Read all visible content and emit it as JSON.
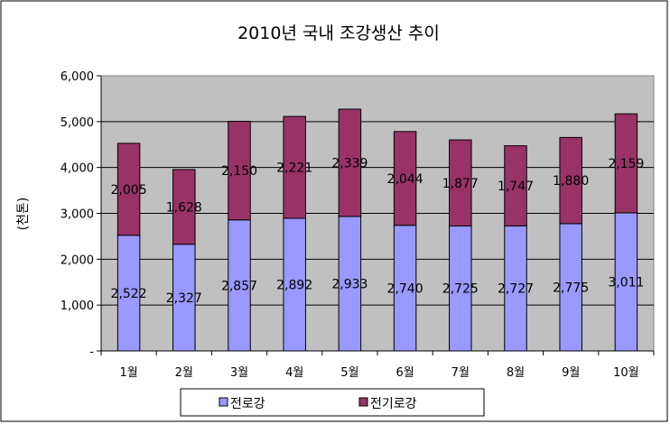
{
  "chart_data": {
    "type": "bar",
    "stacked": true,
    "title": "2010년 국내 조강생산 추이",
    "ylabel": "(천톤)",
    "xlabel": "",
    "categories": [
      "1월",
      "2월",
      "3월",
      "4월",
      "5월",
      "6월",
      "7월",
      "8월",
      "9월",
      "10월"
    ],
    "series": [
      {
        "name": "전로강",
        "color": "#9999ff",
        "values": [
          2522,
          2327,
          2857,
          2892,
          2933,
          2740,
          2725,
          2727,
          2775,
          3011
        ]
      },
      {
        "name": "전기로강",
        "color": "#993366",
        "values": [
          2005,
          1628,
          2150,
          2221,
          2339,
          2044,
          1877,
          1747,
          1880,
          2159
        ]
      }
    ],
    "data_labels": [
      [
        "2,522",
        "2,327",
        "2,857",
        "2,892",
        "2,933",
        "2,740",
        "2,725",
        "2,727",
        "2,775",
        "3,011"
      ],
      [
        "2,005",
        "1,628",
        "2,150",
        "2,221",
        "2,339",
        "2,044",
        "1,877",
        "1,747",
        "1,880",
        "2,159"
      ]
    ],
    "y_ticks": [
      0,
      1000,
      2000,
      3000,
      4000,
      5000,
      6000
    ],
    "y_tick_labels": [
      "-",
      "1,000",
      "2,000",
      "3,000",
      "4,000",
      "5,000",
      "6,000"
    ],
    "ylim": [
      0,
      6000
    ],
    "grid": true,
    "legend_position": "bottom",
    "plot_background": "#c0c0c0"
  }
}
